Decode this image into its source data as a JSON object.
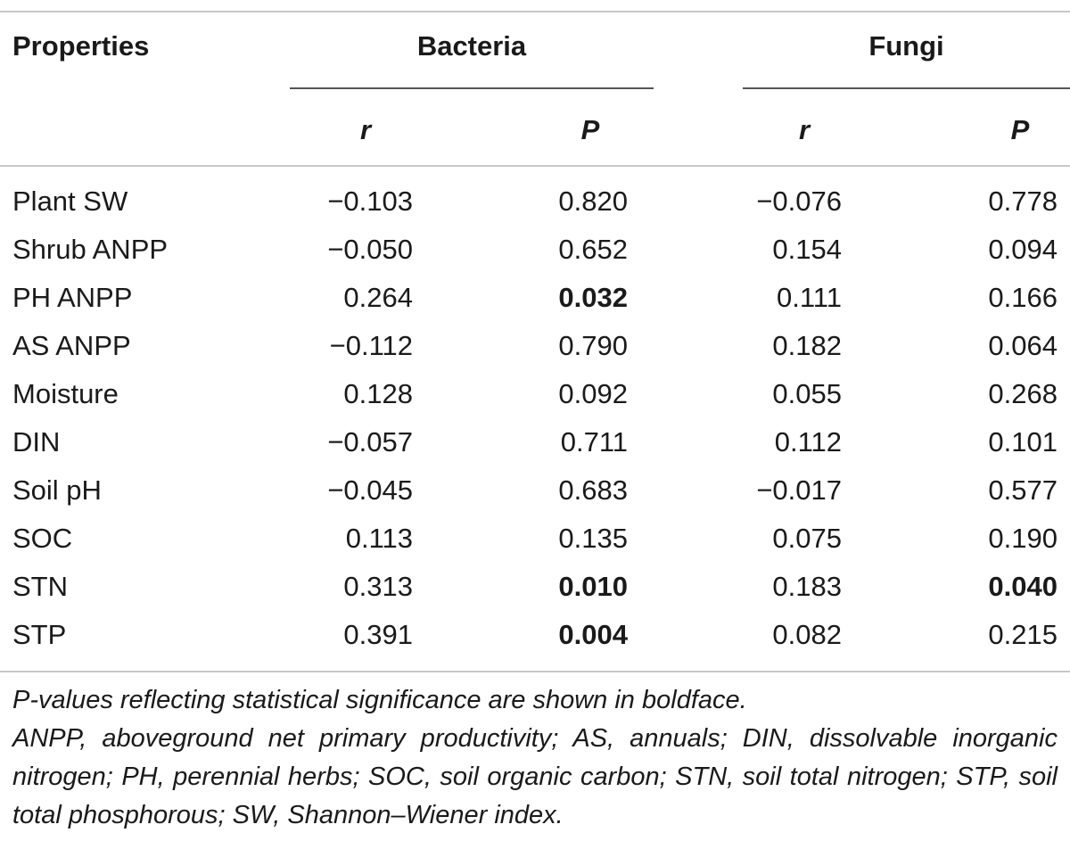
{
  "table": {
    "header": {
      "properties": "Properties",
      "bacteria": "Bacteria",
      "fungi": "Fungi",
      "r": "r",
      "p": "P"
    },
    "rows": [
      {
        "property": "Plant SW",
        "b_r": "−0.103",
        "b_p": "0.820",
        "b_p_bold": false,
        "f_r": "−0.076",
        "f_p": "0.778",
        "f_p_bold": false
      },
      {
        "property": "Shrub ANPP",
        "b_r": "−0.050",
        "b_p": "0.652",
        "b_p_bold": false,
        "f_r": "0.154",
        "f_p": "0.094",
        "f_p_bold": false
      },
      {
        "property": "PH ANPP",
        "b_r": "0.264",
        "b_p": "0.032",
        "b_p_bold": true,
        "f_r": "0.111",
        "f_p": "0.166",
        "f_p_bold": false
      },
      {
        "property": "AS ANPP",
        "b_r": "−0.112",
        "b_p": "0.790",
        "b_p_bold": false,
        "f_r": "0.182",
        "f_p": "0.064",
        "f_p_bold": false
      },
      {
        "property": "Moisture",
        "b_r": "0.128",
        "b_p": "0.092",
        "b_p_bold": false,
        "f_r": "0.055",
        "f_p": "0.268",
        "f_p_bold": false
      },
      {
        "property": "DIN",
        "b_r": "−0.057",
        "b_p": "0.711",
        "b_p_bold": false,
        "f_r": "0.112",
        "f_p": "0.101",
        "f_p_bold": false
      },
      {
        "property": "Soil pH",
        "b_r": "−0.045",
        "b_p": "0.683",
        "b_p_bold": false,
        "f_r": "−0.017",
        "f_p": "0.577",
        "f_p_bold": false
      },
      {
        "property": "SOC",
        "b_r": "0.113",
        "b_p": "0.135",
        "b_p_bold": false,
        "f_r": "0.075",
        "f_p": "0.190",
        "f_p_bold": false
      },
      {
        "property": "STN",
        "b_r": "0.313",
        "b_p": "0.010",
        "b_p_bold": true,
        "f_r": "0.183",
        "f_p": "0.040",
        "f_p_bold": true
      },
      {
        "property": "STP",
        "b_r": "0.391",
        "b_p": "0.004",
        "b_p_bold": true,
        "f_r": "0.082",
        "f_p": "0.215",
        "f_p_bold": false
      }
    ]
  },
  "footnotes": {
    "significance": "P-values reflecting statistical significance are shown in boldface.",
    "abbreviations": "ANPP, aboveground net primary productivity; AS, annuals; DIN, dissolvable inorganic nitrogen; PH, perennial herbs; SOC, soil organic carbon; STN, soil total nitrogen; STP, soil total phosphorous; SW, Shannon–Wiener index."
  }
}
